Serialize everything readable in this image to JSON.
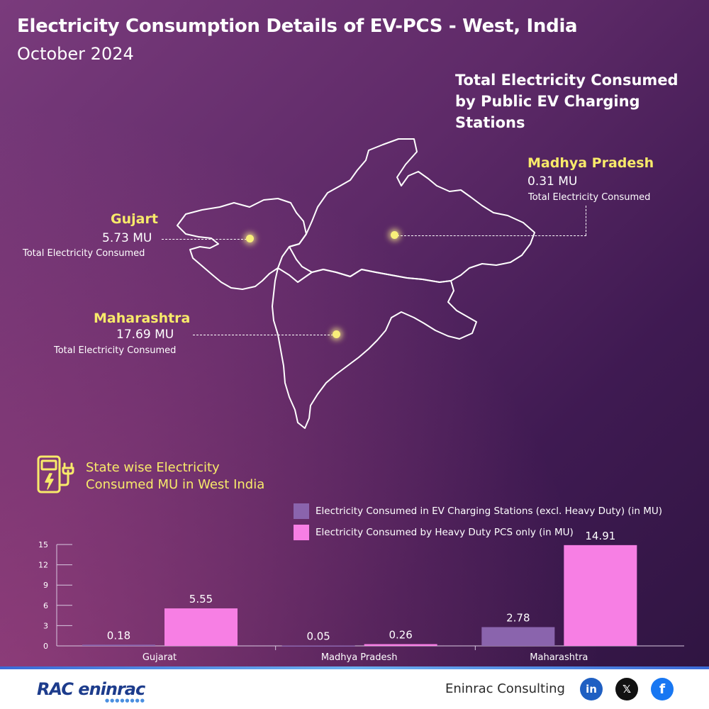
{
  "header": {
    "title": "Electricity Consumption Details of EV-PCS - West, India",
    "subtitle": "October 2024"
  },
  "map": {
    "heading": "Total Electricity Consumed by Public EV Charging Stations",
    "states": [
      {
        "name": "Gujart",
        "value": "5.73 MU",
        "caption": "Total Electricity Consumed"
      },
      {
        "name": "Madhya Pradesh",
        "value": "0.31 MU",
        "caption": "Total Electricity Consumed"
      },
      {
        "name": "Maharashtra",
        "value": "17.69 MU",
        "caption": "Total Electricity Consumed"
      }
    ],
    "colors": {
      "highlight": "#f8ea6a",
      "outline": "#ffffff"
    }
  },
  "section": {
    "title": "State wise Electricity Consumed MU in West India",
    "icon": "ev-charger-icon"
  },
  "chart_data": {
    "type": "bar",
    "categories": [
      "Gujarat",
      "Madhya Pradesh",
      "Maharashtra"
    ],
    "series": [
      {
        "name": "Electricity Consumed in EV Charging Stations (excl. Heavy Duty) (in MU)",
        "values": [
          0.18,
          0.05,
          2.78
        ],
        "color": "#8a64ad"
      },
      {
        "name": "Electricity Consumed by Heavy Duty PCS only (in MU)",
        "values": [
          5.55,
          0.26,
          14.91
        ],
        "color": "#f77fe4"
      }
    ],
    "value_labels": [
      [
        "0.18",
        "0.05",
        "2.78"
      ],
      [
        "5.55",
        "0.26",
        "14.91"
      ]
    ],
    "yticks": [
      "0",
      "3",
      "6",
      "9",
      "12",
      "15"
    ],
    "ylim": [
      0,
      15
    ],
    "grid": false,
    "legend_position": "top-right"
  },
  "footer": {
    "logo_text": "RAC eninrac",
    "company": "Eninrac Consulting",
    "social": [
      {
        "label": "in",
        "icon": "linkedin-icon"
      },
      {
        "label": "𝕏",
        "icon": "x-icon"
      },
      {
        "label": "f",
        "icon": "facebook-icon"
      }
    ]
  }
}
